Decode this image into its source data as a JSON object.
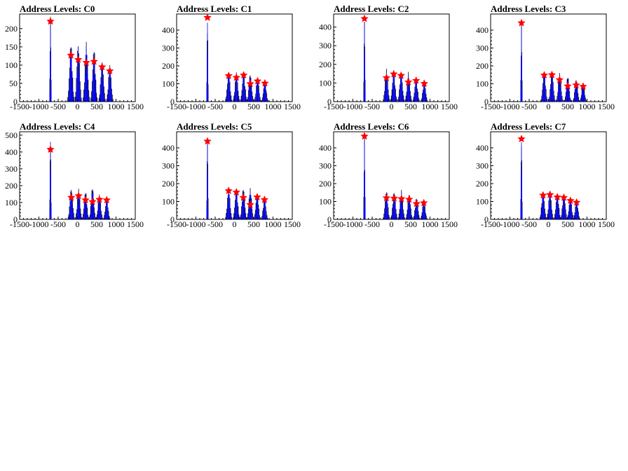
{
  "colors": {
    "hist": "#0000ff",
    "overlay": "#000000",
    "marker": "#ff0000",
    "frame": "#000000"
  },
  "chart_data": [
    {
      "type": "bar",
      "title": "Address Levels: C0",
      "xlim": [
        -1500,
        1500
      ],
      "ylim": [
        0,
        240
      ],
      "xticks": [
        -1500,
        -1000,
        -500,
        0,
        500,
        1000,
        1500
      ],
      "yticks": [
        0,
        50,
        100,
        150,
        200
      ],
      "peaks": [
        {
          "x": -700,
          "y": 220
        },
        {
          "x": -170,
          "y": 127
        },
        {
          "x": 20,
          "y": 115
        },
        {
          "x": 230,
          "y": 107
        },
        {
          "x": 430,
          "y": 110
        },
        {
          "x": 640,
          "y": 95
        },
        {
          "x": 840,
          "y": 84
        }
      ],
      "max_counts": [
        237,
        162,
        163,
        165,
        148,
        117,
        100
      ]
    },
    {
      "type": "bar",
      "title": "Address Levels: C1",
      "xlim": [
        -1500,
        1500
      ],
      "ylim": [
        0,
        490
      ],
      "xticks": [
        -1500,
        -1000,
        -500,
        0,
        500,
        1000,
        1500
      ],
      "yticks": [
        0,
        100,
        200,
        300,
        400
      ],
      "peaks": [
        {
          "x": -700,
          "y": 470
        },
        {
          "x": -150,
          "y": 145
        },
        {
          "x": 50,
          "y": 135
        },
        {
          "x": 240,
          "y": 148
        },
        {
          "x": 410,
          "y": 100
        },
        {
          "x": 600,
          "y": 115
        },
        {
          "x": 790,
          "y": 103
        }
      ],
      "max_counts": [
        480,
        170,
        165,
        170,
        160,
        135,
        120
      ]
    },
    {
      "type": "bar",
      "title": "Address Levels: C2",
      "xlim": [
        -1500,
        1500
      ],
      "ylim": [
        0,
        470
      ],
      "xticks": [
        -1500,
        -1000,
        -500,
        0,
        500,
        1000,
        1500
      ],
      "yticks": [
        0,
        100,
        200,
        300,
        400
      ],
      "peaks": [
        {
          "x": -700,
          "y": 445
        },
        {
          "x": -130,
          "y": 128
        },
        {
          "x": 60,
          "y": 148
        },
        {
          "x": 250,
          "y": 140
        },
        {
          "x": 440,
          "y": 105
        },
        {
          "x": 640,
          "y": 113
        },
        {
          "x": 850,
          "y": 97
        }
      ],
      "max_counts": [
        460,
        178,
        170,
        162,
        160,
        130,
        115
      ]
    },
    {
      "type": "bar",
      "title": "Address Levels: C3",
      "xlim": [
        -1500,
        1500
      ],
      "ylim": [
        0,
        490
      ],
      "xticks": [
        -1500,
        -1000,
        -500,
        0,
        500,
        1000,
        1500
      ],
      "yticks": [
        0,
        100,
        200,
        300,
        400
      ],
      "peaks": [
        {
          "x": -700,
          "y": 440
        },
        {
          "x": -110,
          "y": 148
        },
        {
          "x": 90,
          "y": 150
        },
        {
          "x": 290,
          "y": 122
        },
        {
          "x": 500,
          "y": 87
        },
        {
          "x": 720,
          "y": 93
        },
        {
          "x": 900,
          "y": 85
        }
      ],
      "max_counts": [
        460,
        175,
        172,
        160,
        145,
        130,
        105
      ]
    },
    {
      "type": "bar",
      "title": "Address Levels: C4",
      "xlim": [
        -1500,
        1500
      ],
      "ylim": [
        0,
        520
      ],
      "xticks": [
        -1500,
        -1000,
        -500,
        0,
        500,
        1000,
        1500
      ],
      "yticks": [
        0,
        100,
        200,
        300,
        400,
        500
      ],
      "peaks": [
        {
          "x": -700,
          "y": 415
        },
        {
          "x": -160,
          "y": 130
        },
        {
          "x": 30,
          "y": 140
        },
        {
          "x": 210,
          "y": 115
        },
        {
          "x": 390,
          "y": 105
        },
        {
          "x": 570,
          "y": 118
        },
        {
          "x": 760,
          "y": 115
        }
      ],
      "max_counts": [
        500,
        190,
        182,
        170,
        195,
        148,
        125
      ]
    },
    {
      "type": "bar",
      "title": "Address Levels: C5",
      "xlim": [
        -1500,
        1500
      ],
      "ylim": [
        0,
        490
      ],
      "xticks": [
        -1500,
        -1000,
        -500,
        0,
        500,
        1000,
        1500
      ],
      "yticks": [
        0,
        100,
        200,
        300,
        400
      ],
      "peaks": [
        {
          "x": -700,
          "y": 437
        },
        {
          "x": -150,
          "y": 160
        },
        {
          "x": 50,
          "y": 152
        },
        {
          "x": 230,
          "y": 122
        },
        {
          "x": 410,
          "y": 82
        },
        {
          "x": 590,
          "y": 125
        },
        {
          "x": 780,
          "y": 110
        }
      ],
      "max_counts": [
        470,
        180,
        178,
        180,
        175,
        148,
        120
      ]
    },
    {
      "type": "bar",
      "title": "Address Levels: C6",
      "xlim": [
        -1500,
        1500
      ],
      "ylim": [
        0,
        490
      ],
      "xticks": [
        -1500,
        -1000,
        -500,
        0,
        500,
        1000,
        1500
      ],
      "yticks": [
        0,
        100,
        200,
        300,
        400
      ],
      "peaks": [
        {
          "x": -700,
          "y": 465
        },
        {
          "x": -130,
          "y": 120
        },
        {
          "x": 70,
          "y": 118
        },
        {
          "x": 260,
          "y": 115
        },
        {
          "x": 460,
          "y": 112
        },
        {
          "x": 650,
          "y": 88
        },
        {
          "x": 840,
          "y": 92
        }
      ],
      "max_counts": [
        480,
        165,
        160,
        165,
        150,
        125,
        108
      ]
    },
    {
      "type": "bar",
      "title": "Address Levels: C7",
      "xlim": [
        -1500,
        1500
      ],
      "ylim": [
        0,
        490
      ],
      "xticks": [
        -1500,
        -1000,
        -500,
        0,
        500,
        1000,
        1500
      ],
      "yticks": [
        0,
        100,
        200,
        300,
        400
      ],
      "peaks": [
        {
          "x": -700,
          "y": 450
        },
        {
          "x": -140,
          "y": 135
        },
        {
          "x": 40,
          "y": 138
        },
        {
          "x": 230,
          "y": 125
        },
        {
          "x": 400,
          "y": 122
        },
        {
          "x": 570,
          "y": 105
        },
        {
          "x": 730,
          "y": 95
        }
      ],
      "max_counts": [
        470,
        165,
        160,
        155,
        150,
        125,
        110
      ]
    }
  ]
}
